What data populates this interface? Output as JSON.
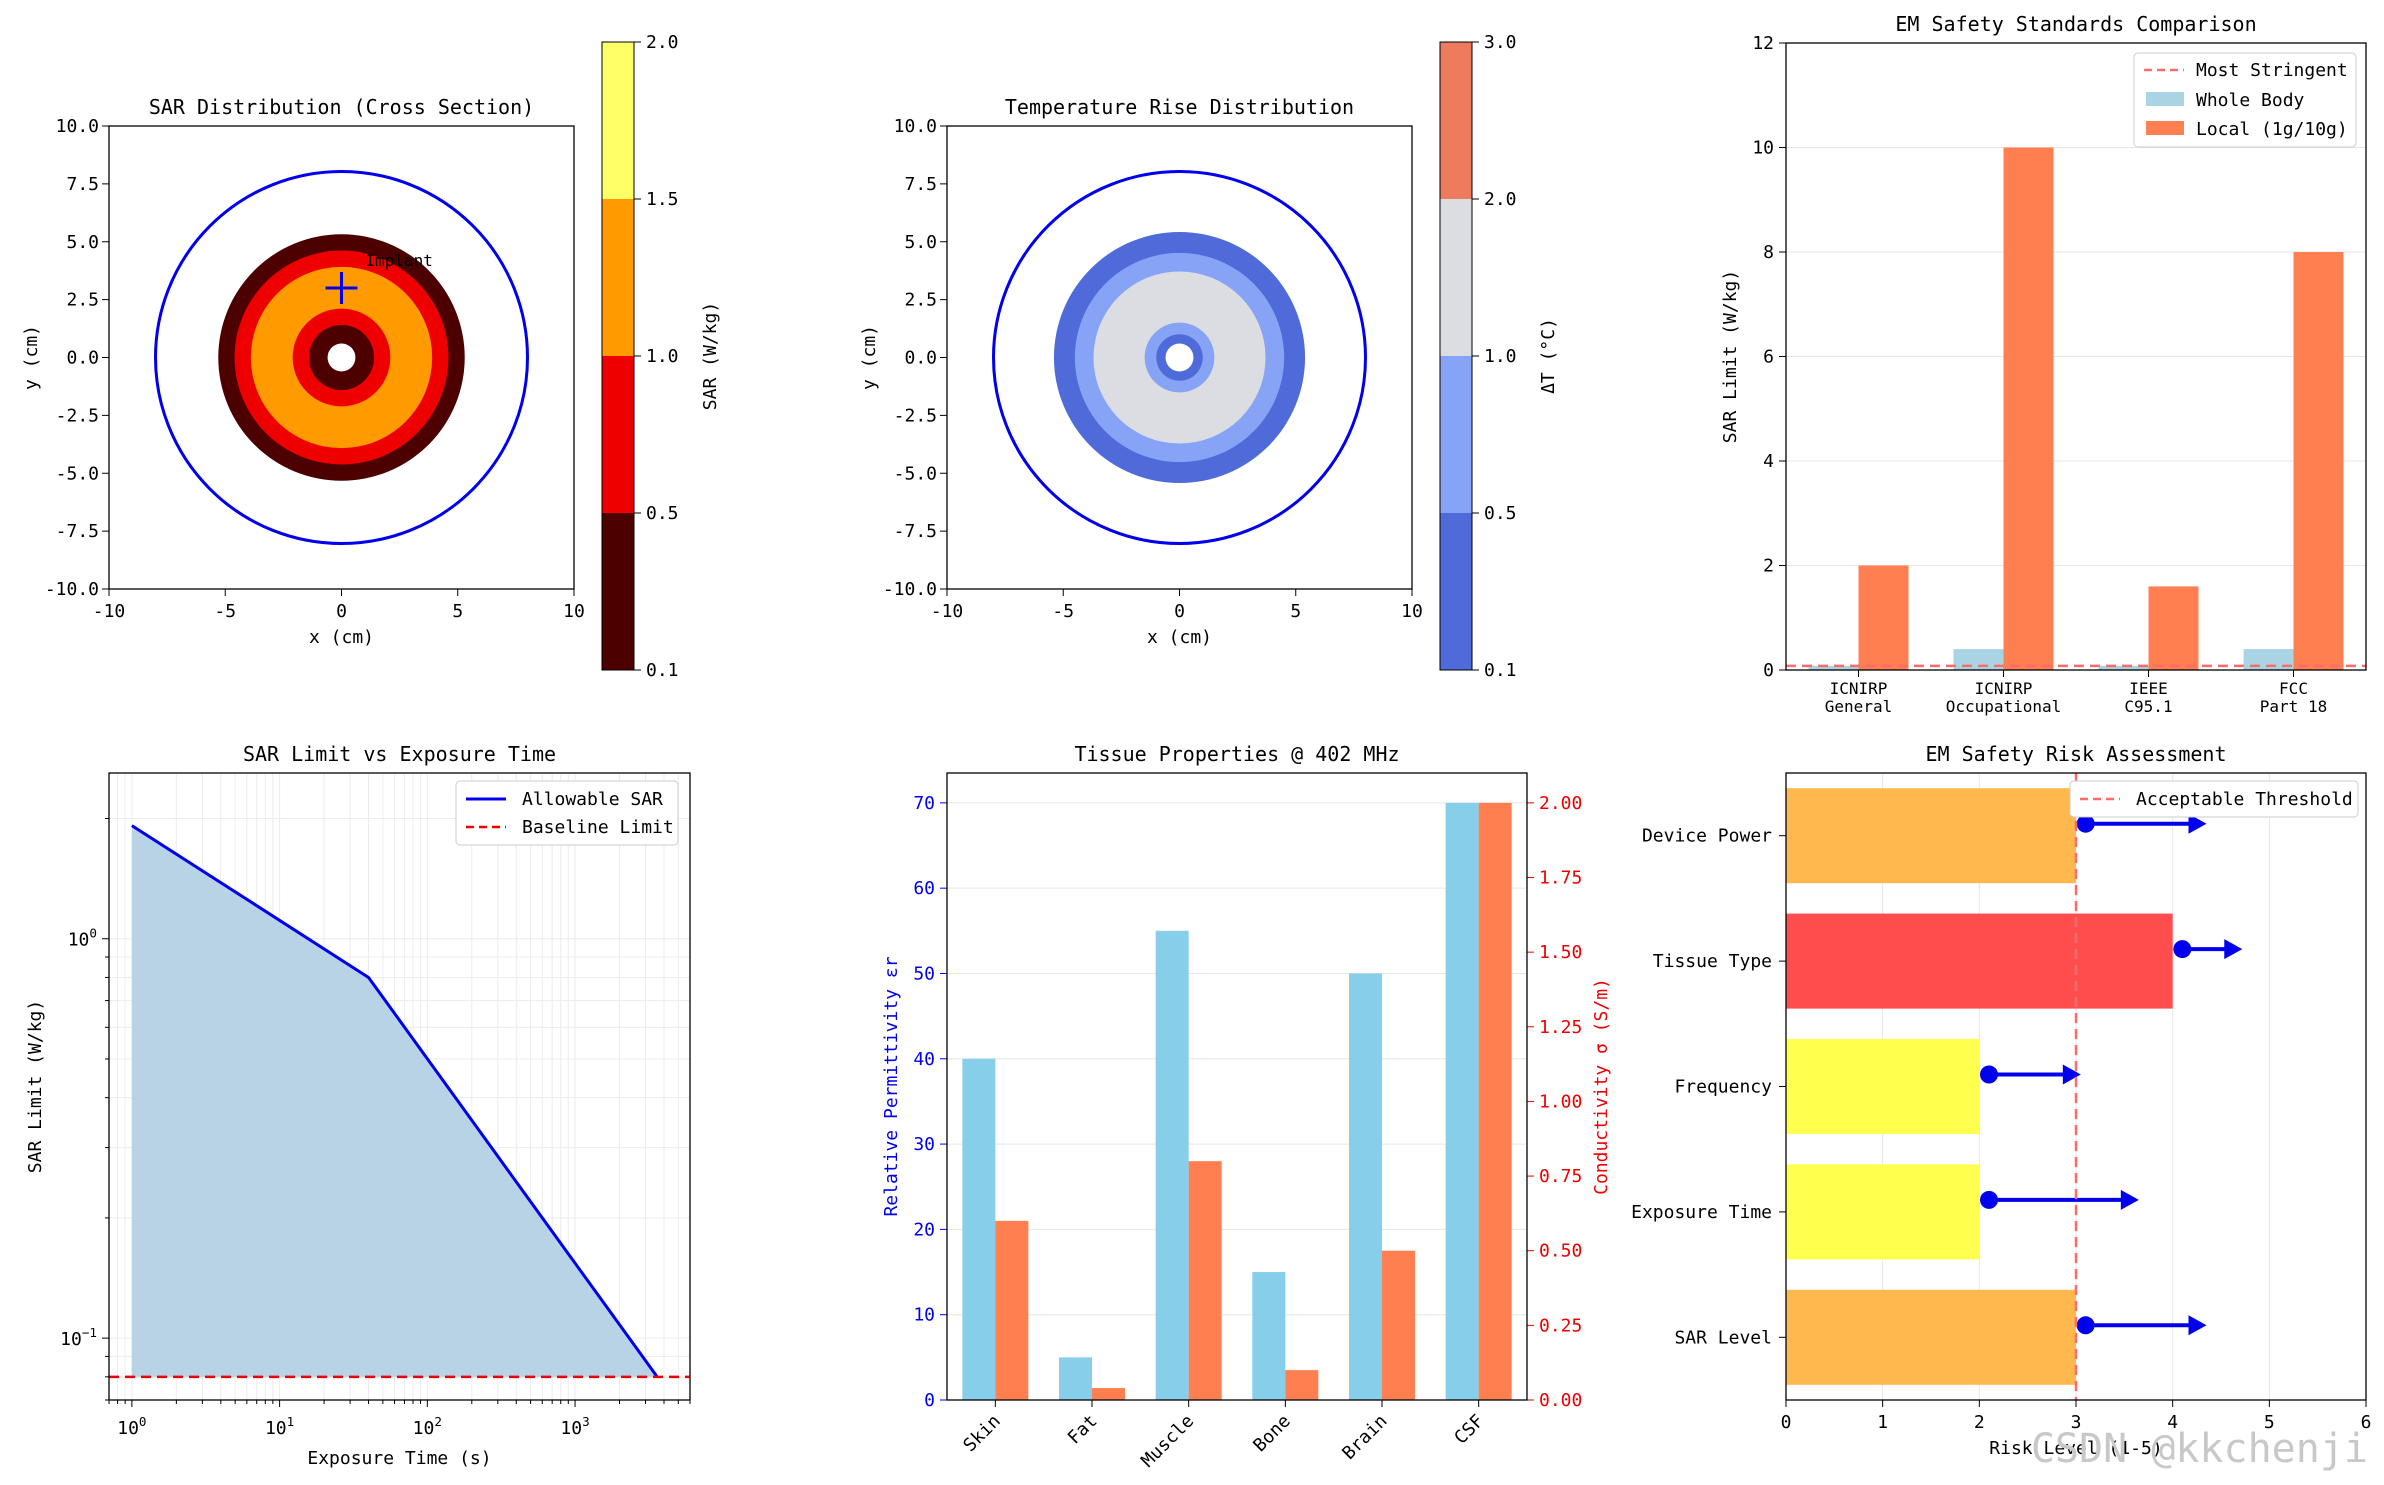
{
  "watermark": "CSDN @kkchenji",
  "chart_data": [
    {
      "type": "heatmap",
      "id": "sar",
      "title": "SAR Distribution (Cross Section)",
      "xlabel": "x (cm)",
      "ylabel": "y (cm)",
      "xlim": [
        -10,
        10
      ],
      "ylim": [
        -10,
        10
      ],
      "xticks": [
        "-10",
        "-5",
        "0",
        "5",
        "10"
      ],
      "yticks": [
        "-10.0",
        "-7.5",
        "-5.0",
        "-2.5",
        "0.0",
        "2.5",
        "5.0",
        "7.5",
        "10.0"
      ],
      "rings": [
        {
          "r": 5.3,
          "color": "#4d0000"
        },
        {
          "r": 4.6,
          "color": "#ee0000"
        },
        {
          "r": 3.9,
          "color": "#ff9a00"
        },
        {
          "r": 2.1,
          "color": "#ee0000"
        },
        {
          "r": 1.4,
          "color": "#4d0000"
        },
        {
          "r": 0.6,
          "color": "#ffffff"
        }
      ],
      "outline_radius": 8,
      "outline_color": "#0000ee",
      "marker": {
        "x": 0,
        "y": 3,
        "label": "Implant"
      },
      "colorbar": {
        "label": "SAR (W/kg)",
        "ticks": [
          "0.1",
          "0.5",
          "1.0",
          "1.5",
          "2.0"
        ],
        "colors": [
          "#4d0000",
          "#ee0000",
          "#ff9a00",
          "#ffff66"
        ]
      }
    },
    {
      "type": "heatmap",
      "id": "temp",
      "title": "Temperature Rise Distribution",
      "xlabel": "x (cm)",
      "ylabel": "y (cm)",
      "xlim": [
        -10,
        10
      ],
      "ylim": [
        -10,
        10
      ],
      "xticks": [
        "-10",
        "-5",
        "0",
        "5",
        "10"
      ],
      "yticks": [
        "-10.0",
        "-7.5",
        "-5.0",
        "-2.5",
        "0.0",
        "2.5",
        "5.0",
        "7.5",
        "10.0"
      ],
      "rings": [
        {
          "r": 5.4,
          "color": "#4f6bd9"
        },
        {
          "r": 4.5,
          "color": "#86a3f6"
        },
        {
          "r": 3.7,
          "color": "#dcdde2"
        },
        {
          "r": 1.5,
          "color": "#86a3f6"
        },
        {
          "r": 1.0,
          "color": "#4f6bd9"
        },
        {
          "r": 0.6,
          "color": "#ffffff"
        }
      ],
      "outline_radius": 8,
      "outline_color": "#0000ee",
      "colorbar": {
        "label": "ΔT (°C)",
        "ticks": [
          "0.1",
          "0.5",
          "1.0",
          "2.0",
          "3.0"
        ],
        "colors": [
          "#4f6bd9",
          "#86a3f6",
          "#dcdde2",
          "#ee7b5e"
        ]
      }
    },
    {
      "type": "bar",
      "id": "standards",
      "title": "EM Safety Standards Comparison",
      "ylabel": "SAR Limit (W/kg)",
      "ylim": [
        0,
        12
      ],
      "yticks": [
        "0",
        "2",
        "4",
        "6",
        "8",
        "10",
        "12"
      ],
      "categories": [
        [
          "ICNIRP",
          "General"
        ],
        [
          "ICNIRP",
          "Occupational"
        ],
        [
          "IEEE",
          "C95.1"
        ],
        [
          "FCC",
          "Part 18"
        ]
      ],
      "series": [
        {
          "name": "Whole Body",
          "values": [
            0.08,
            0.4,
            0.08,
            0.4
          ],
          "color": "#a8d4e3"
        },
        {
          "name": "Local (1g/10g)",
          "values": [
            2,
            10,
            1.6,
            8
          ],
          "color": "#ff7f50"
        }
      ],
      "hline": {
        "name": "Most Stringent",
        "value": 0.08,
        "color": "#ff6b6b"
      },
      "legend": "top-right"
    },
    {
      "type": "area",
      "id": "exposure",
      "title": "SAR Limit vs Exposure Time",
      "xlabel": "Exposure Time (s)",
      "ylabel": "SAR Limit (W/kg)",
      "xscale": "log",
      "yscale": "log",
      "xlim": [
        0.7,
        6000
      ],
      "ylim": [
        0.07,
        2.6
      ],
      "xticks": [
        {
          "v": 1,
          "label": "10",
          "sup": "0"
        },
        {
          "v": 10,
          "label": "10",
          "sup": "1"
        },
        {
          "v": 100,
          "label": "10",
          "sup": "2"
        },
        {
          "v": 1000,
          "label": "10",
          "sup": "3"
        }
      ],
      "yticks": [
        {
          "v": 1,
          "label": "10",
          "sup": "0"
        },
        {
          "v": 0.1,
          "label": "10",
          "sup": "−1"
        }
      ],
      "x": [
        1,
        40,
        3600
      ],
      "y": [
        1.92,
        0.8,
        0.08
      ],
      "series": [
        {
          "name": "Allowable SAR",
          "color": "#0000ee"
        },
        {
          "name": "Baseline Limit",
          "value": 0.08,
          "color": "#ee0000"
        }
      ],
      "fill_color": "#b8d2e6",
      "legend": "top-right"
    },
    {
      "type": "bar",
      "id": "tissue",
      "title": "Tissue Properties @ 402 MHz",
      "categories": [
        "Skin",
        "Fat",
        "Muscle",
        "Bone",
        "Brain",
        "CSF"
      ],
      "ylabel": "Relative Permittivity εr",
      "ylabel_right": "Conductivity σ (S/m)",
      "ylim": [
        0,
        73.5
      ],
      "ylim_right": [
        0,
        2.1
      ],
      "yticks": [
        "0",
        "10",
        "20",
        "30",
        "40",
        "50",
        "60",
        "70"
      ],
      "yticks_right": [
        "0.00",
        "0.25",
        "0.50",
        "0.75",
        "1.00",
        "1.25",
        "1.50",
        "1.75",
        "2.00"
      ],
      "series": [
        {
          "name": "Relative Permittivity",
          "axis": "left",
          "values": [
            40,
            5,
            55,
            15,
            50,
            70
          ],
          "color": "#87ceeb"
        },
        {
          "name": "Conductivity",
          "axis": "right",
          "values": [
            0.6,
            0.04,
            0.8,
            0.1,
            0.5,
            2.0
          ],
          "color": "#ff7f50"
        }
      ],
      "left_color": "#0000ee",
      "right_color": "#ee0000"
    },
    {
      "type": "bar",
      "id": "risk",
      "orientation": "horizontal",
      "title": "EM Safety Risk Assessment",
      "xlabel": "Risk Level (1-5)",
      "xlim": [
        0,
        6
      ],
      "xticks": [
        "0",
        "1",
        "2",
        "3",
        "4",
        "5",
        "6"
      ],
      "categories": [
        "Device Power",
        "Tissue Type",
        "Frequency",
        "Exposure Time",
        "SAR Level"
      ],
      "values": [
        3,
        4,
        2,
        2,
        3
      ],
      "colors": [
        "#ffb84d",
        "#ff4d4d",
        "#ffff4d",
        "#ffff4d",
        "#ffb84d"
      ],
      "arrows": [
        {
          "start": 3.1,
          "end": 4.35
        },
        {
          "start": 4.1,
          "end": 4.72
        },
        {
          "start": 2.1,
          "end": 3.05
        },
        {
          "start": 2.1,
          "end": 3.65
        },
        {
          "start": 3.1,
          "end": 4.35
        }
      ],
      "arrow_color": "#0000ee",
      "threshold": {
        "name": "Acceptable Threshold",
        "value": 3,
        "color": "#ff6b6b"
      },
      "legend": "top-right"
    }
  ]
}
